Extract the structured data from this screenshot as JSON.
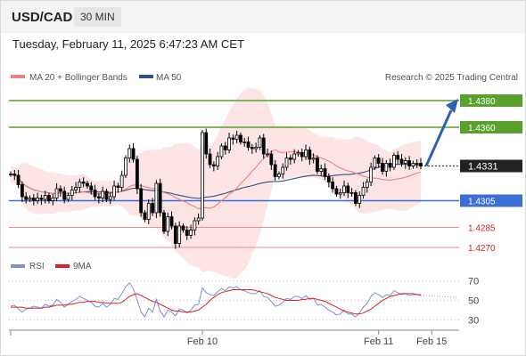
{
  "header": {
    "symbol": "USD/CAD",
    "timeframe": "30 MIN"
  },
  "datetime": "Tuesday, February 11, 2025 6:47:23 AM CET",
  "copyright": "Research © 2025 Trading Central",
  "colors": {
    "resistance": "#5aa02c",
    "support": "#3b6fd6",
    "target": "#f28b8b",
    "candle": "#000000",
    "ma20": "#f08080",
    "ma50": "#2f4f8a",
    "band_fill": "#fde0e0",
    "rsi": "#7a8fd6",
    "rsi_ma": "#e02020",
    "arrow": "#2f5fb0"
  },
  "chart_data": [
    {
      "type": "candlestick",
      "legend": [
        {
          "label": "MA 20 + Bollinger Bands",
          "color": "#f08080"
        },
        {
          "label": "MA 50",
          "color": "#2f4f8a"
        }
      ],
      "current_price": 1.4331,
      "levels": [
        {
          "value": 1.438,
          "label": "1.4380",
          "kind": "resistance"
        },
        {
          "value": 1.436,
          "label": "1.4360",
          "kind": "resistance"
        },
        {
          "value": 1.4305,
          "label": "1.4305",
          "kind": "support"
        },
        {
          "value": 1.4285,
          "label": "1.4285",
          "kind": "target"
        },
        {
          "value": 1.427,
          "label": "1.4270",
          "kind": "target"
        }
      ],
      "current_label": "1.4331",
      "x_ticks": [
        "Feb 10",
        "Feb 11",
        "Feb 15"
      ],
      "ylim": [
        1.4262,
        1.4392
      ],
      "forecast": {
        "from": 1.4331,
        "to": 1.438,
        "direction": "up"
      },
      "close": [
        1.4325,
        1.4324,
        1.4317,
        1.4308,
        1.4306,
        1.4307,
        1.4305,
        1.4307,
        1.4306,
        1.4309,
        1.4305,
        1.4307,
        1.4314,
        1.4312,
        1.4306,
        1.4309,
        1.4313,
        1.4315,
        1.4319,
        1.4318,
        1.4316,
        1.4313,
        1.4308,
        1.4307,
        1.4312,
        1.4306,
        1.4308,
        1.4316,
        1.4315,
        1.4324,
        1.4337,
        1.4344,
        1.4336,
        1.4314,
        1.4296,
        1.4291,
        1.4303,
        1.4296,
        1.4318,
        1.4296,
        1.4282,
        1.4293,
        1.4286,
        1.4273,
        1.4286,
        1.4283,
        1.4279,
        1.4283,
        1.429,
        1.4292,
        1.4356,
        1.434,
        1.4332,
        1.4331,
        1.4338,
        1.4346,
        1.4343,
        1.4352,
        1.4351,
        1.4354,
        1.4349,
        1.4349,
        1.4345,
        1.4344,
        1.4345,
        1.4352,
        1.434,
        1.434,
        1.4332,
        1.4323,
        1.4325,
        1.433,
        1.4337,
        1.4336,
        1.434,
        1.4341,
        1.4338,
        1.4343,
        1.4336,
        1.4337,
        1.4327,
        1.4329,
        1.4323,
        1.4319,
        1.4314,
        1.431,
        1.4311,
        1.4316,
        1.4311,
        1.4311,
        1.4303,
        1.4309,
        1.4315,
        1.4319,
        1.433,
        1.4337,
        1.4333,
        1.4327,
        1.4333,
        1.433,
        1.4339,
        1.4336,
        1.4333,
        1.4335,
        1.4331,
        1.4333,
        1.4333,
        1.4331
      ],
      "x_tick_index": [
        50,
        96,
        108
      ]
    },
    {
      "type": "line",
      "title": "",
      "legend": [
        {
          "label": "RSI",
          "color": "#7a8fd6"
        },
        {
          "label": "9MA",
          "color": "#e02020"
        }
      ],
      "y_ticks": [
        70,
        50,
        30
      ],
      "ylim": [
        22,
        78
      ],
      "series": [
        {
          "name": "RSI",
          "values": [
            44,
            45,
            41,
            38,
            41,
            42,
            44,
            43,
            42,
            46,
            44,
            45,
            51,
            48,
            43,
            46,
            49,
            51,
            54,
            52,
            50,
            48,
            44,
            43,
            47,
            43,
            46,
            52,
            51,
            57,
            64,
            68,
            62,
            50,
            38,
            33,
            42,
            38,
            51,
            39,
            33,
            40,
            38,
            34,
            41,
            40,
            37,
            40,
            45,
            46,
            63,
            58,
            56,
            55,
            59,
            62,
            60,
            64,
            63,
            64,
            61,
            60,
            58,
            57,
            57,
            60,
            54,
            53,
            49,
            44,
            45,
            48,
            52,
            51,
            54,
            54,
            52,
            55,
            51,
            52,
            45,
            46,
            43,
            40,
            38,
            35,
            36,
            40,
            36,
            36,
            33,
            37,
            43,
            47,
            54,
            58,
            56,
            53,
            56,
            55,
            60,
            58,
            56,
            57,
            55,
            56,
            56,
            55
          ]
        },
        {
          "name": "9MA",
          "values": [
            43,
            43,
            43,
            43,
            42,
            42,
            42,
            42,
            42,
            43,
            43,
            44,
            45,
            45,
            45,
            46,
            46,
            47,
            48,
            48,
            49,
            49,
            49,
            48,
            48,
            47,
            47,
            47,
            47,
            48,
            51,
            54,
            56,
            57,
            55,
            53,
            51,
            49,
            48,
            46,
            44,
            42,
            40,
            39,
            39,
            38,
            38,
            38,
            39,
            40,
            43,
            46,
            50,
            53,
            56,
            58,
            59,
            60,
            61,
            61,
            61,
            61,
            61,
            61,
            60,
            59,
            58,
            57,
            55,
            53,
            52,
            51,
            50,
            50,
            50,
            50,
            51,
            51,
            52,
            52,
            51,
            50,
            49,
            47,
            45,
            43,
            41,
            39,
            38,
            37,
            36,
            36,
            37,
            39,
            41,
            44,
            47,
            50,
            52,
            54,
            55,
            56,
            57,
            57,
            57,
            57,
            56,
            56
          ]
        }
      ]
    }
  ]
}
